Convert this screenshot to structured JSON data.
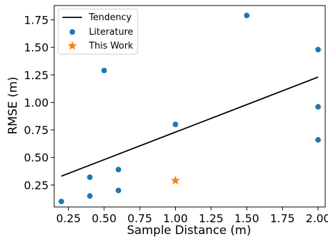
{
  "chart_data": {
    "type": "scatter",
    "title": "",
    "xlabel": "Sample Distance (m)",
    "ylabel": "RMSE (m)",
    "xlim": [
      0.15,
      2.05
    ],
    "ylim": [
      0.05,
      1.88
    ],
    "xticks": [
      "0.25",
      "0.50",
      "0.75",
      "1.00",
      "1.25",
      "1.50",
      "1.75",
      "2.00"
    ],
    "yticks": [
      "0.25",
      "0.50",
      "0.75",
      "1.00",
      "1.25",
      "1.50",
      "1.75"
    ],
    "grid": false,
    "legend_position": "top-left",
    "series": [
      {
        "name": "Tendency",
        "kind": "line",
        "color": "#000000",
        "points": [
          [
            0.2,
            0.33
          ],
          [
            2.0,
            1.23
          ]
        ]
      },
      {
        "name": "Literature",
        "kind": "scatter",
        "marker": "circle",
        "color": "#1f77b4",
        "points": [
          [
            0.2,
            0.1
          ],
          [
            0.4,
            0.32
          ],
          [
            0.4,
            0.15
          ],
          [
            0.5,
            1.29
          ],
          [
            0.6,
            0.39
          ],
          [
            0.6,
            0.2
          ],
          [
            1.0,
            0.8
          ],
          [
            1.5,
            1.79
          ],
          [
            2.0,
            1.48
          ],
          [
            2.0,
            0.96
          ],
          [
            2.0,
            0.66
          ]
        ]
      },
      {
        "name": "This Work",
        "kind": "scatter",
        "marker": "star",
        "color": "#ff7f0e",
        "points": [
          [
            1.0,
            0.29
          ]
        ]
      }
    ]
  }
}
